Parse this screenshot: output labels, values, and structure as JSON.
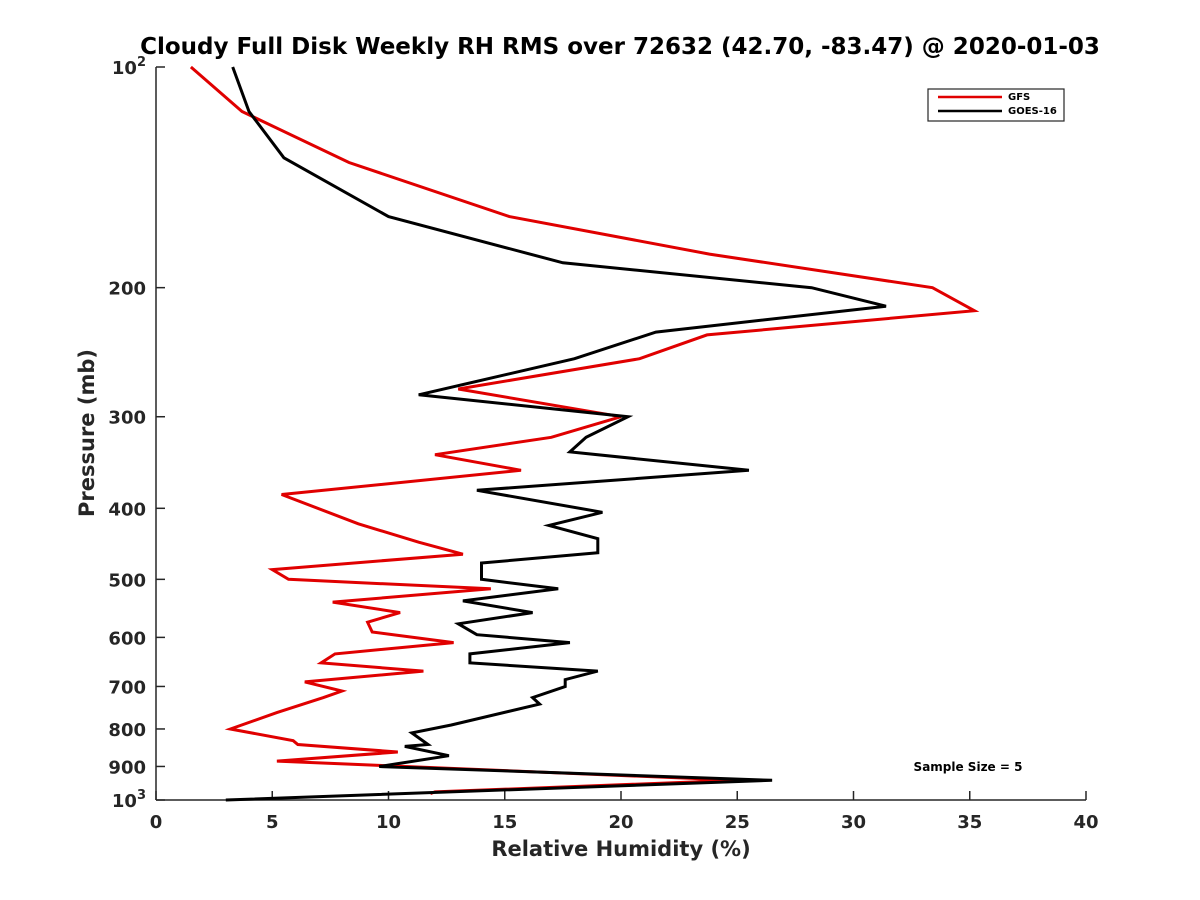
{
  "chart_data": {
    "type": "line",
    "title": "Cloudy Full Disk Weekly RH RMS over 72632 (42.70, -83.47) @ 2020-01-03",
    "xlabel": "Relative Humidity (%)",
    "ylabel": "Pressure (mb)",
    "xlim": [
      0,
      40
    ],
    "ylim": [
      100,
      1000
    ],
    "y_scale": "log",
    "y_reversed": true,
    "grid": false,
    "legend_position": "top-right",
    "x_ticks": [
      "0",
      "5",
      "10",
      "15",
      "20",
      "25",
      "30",
      "35",
      "40"
    ],
    "y_ticks": [
      {
        "value": 100,
        "label": "10",
        "sup": "2"
      },
      {
        "value": 200,
        "label": "200",
        "sup": ""
      },
      {
        "value": 300,
        "label": "300",
        "sup": ""
      },
      {
        "value": 400,
        "label": "400",
        "sup": ""
      },
      {
        "value": 500,
        "label": "500",
        "sup": ""
      },
      {
        "value": 600,
        "label": "600",
        "sup": ""
      },
      {
        "value": 700,
        "label": "700",
        "sup": ""
      },
      {
        "value": 800,
        "label": "800",
        "sup": ""
      },
      {
        "value": 900,
        "label": "900",
        "sup": ""
      },
      {
        "value": 1000,
        "label": "10",
        "sup": "3"
      }
    ],
    "annotation": "Sample Size = 5",
    "series": [
      {
        "name": "GFS",
        "color": "#e00000",
        "points": [
          [
            1.5,
            100
          ],
          [
            3.7,
            115
          ],
          [
            8.3,
            135
          ],
          [
            15.2,
            160
          ],
          [
            23.8,
            180
          ],
          [
            33.4,
            200
          ],
          [
            35.2,
            215
          ],
          [
            23.7,
            232
          ],
          [
            20.8,
            250
          ],
          [
            13,
            275
          ],
          [
            20,
            300
          ],
          [
            17,
            320
          ],
          [
            12,
            338
          ],
          [
            15.7,
            355
          ],
          [
            5.4,
            383
          ],
          [
            8.7,
            420
          ],
          [
            11.3,
            445
          ],
          [
            13.2,
            462
          ],
          [
            5,
            485
          ],
          [
            5.7,
            500
          ],
          [
            14.4,
            515
          ],
          [
            7.6,
            537
          ],
          [
            10.5,
            555
          ],
          [
            9.1,
            572
          ],
          [
            9.3,
            590
          ],
          [
            12.8,
            610
          ],
          [
            7.7,
            632
          ],
          [
            7.1,
            650
          ],
          [
            11.5,
            667
          ],
          [
            6.4,
            690
          ],
          [
            8,
            710
          ],
          [
            7.2,
            725
          ],
          [
            5.2,
            760
          ],
          [
            3.2,
            800
          ],
          [
            5.9,
            830
          ],
          [
            6.1,
            840
          ],
          [
            10.4,
            860
          ],
          [
            5.2,
            885
          ],
          [
            25,
            940
          ],
          [
            12,
            975
          ],
          [
            11.8,
            980
          ]
        ]
      },
      {
        "name": "GOES-16",
        "color": "#000000",
        "points": [
          [
            3.3,
            100
          ],
          [
            4,
            115
          ],
          [
            5.5,
            133
          ],
          [
            10,
            160
          ],
          [
            17.5,
            185
          ],
          [
            28.2,
            200
          ],
          [
            31.4,
            212
          ],
          [
            21.5,
            230
          ],
          [
            18,
            250
          ],
          [
            11.3,
            280
          ],
          [
            20.3,
            300
          ],
          [
            18.5,
            320
          ],
          [
            17.8,
            335
          ],
          [
            25.5,
            355
          ],
          [
            13.8,
            378
          ],
          [
            19.2,
            405
          ],
          [
            16.9,
            422
          ],
          [
            19,
            440
          ],
          [
            19,
            460
          ],
          [
            14,
            475
          ],
          [
            14,
            500
          ],
          [
            17.3,
            515
          ],
          [
            13.2,
            535
          ],
          [
            16.2,
            555
          ],
          [
            13,
            575
          ],
          [
            13.8,
            595
          ],
          [
            17.8,
            610
          ],
          [
            13.5,
            632
          ],
          [
            13.5,
            650
          ],
          [
            19,
            667
          ],
          [
            17.6,
            685
          ],
          [
            17.6,
            700
          ],
          [
            16.2,
            725
          ],
          [
            16.5,
            740
          ],
          [
            12.7,
            790
          ],
          [
            11,
            810
          ],
          [
            11.7,
            840
          ],
          [
            10.7,
            845
          ],
          [
            12.6,
            870
          ],
          [
            9.6,
            900
          ],
          [
            26.5,
            940
          ],
          [
            3,
            1000
          ]
        ]
      }
    ]
  }
}
